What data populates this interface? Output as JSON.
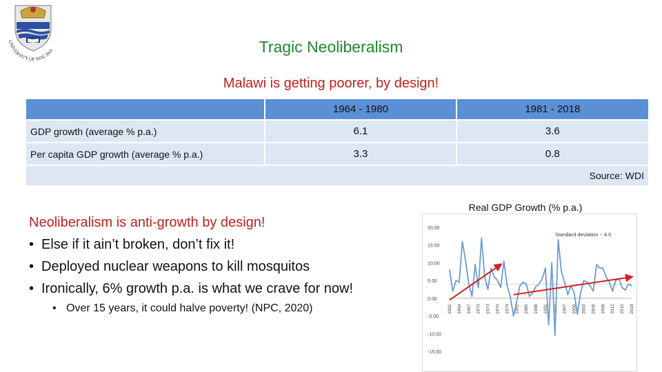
{
  "header": {
    "title": "Tragic Neoliberalism",
    "subtitle": "Malawi is getting poorer, by design!",
    "logo": {
      "name": "university-of-malawi-crest-icon",
      "text": "UNIVERSITY OF MALAWI"
    }
  },
  "table": {
    "columns": [
      "",
      "1964 - 1980",
      "1981 - 2018"
    ],
    "rows": [
      {
        "label": "GDP growth (average % p.a.)",
        "v1": "6.1",
        "v2": "3.6"
      },
      {
        "label": "Per capita GDP growth (average % p.a.)",
        "v1": "3.3",
        "v2": "0.8"
      }
    ],
    "source": "Source: WDI"
  },
  "bullets": {
    "heading": "Neoliberalism is anti-growth by design!",
    "items": [
      "Else if it ain’t broken, don’t fix it!",
      "Deployed nuclear weapons to kill mosquitos",
      "Ironically, 6% growth p.a. is what we crave for now!"
    ],
    "sub_items": [
      "Over 15 years, it could halve poverty! (NPC, 2020)"
    ],
    "bullet_char": "•"
  },
  "chart_data": {
    "type": "line",
    "title": "Real GDP Growth (% p.a.)",
    "annotation": "Standard deviation ~ 4.0",
    "ylim": [
      -15,
      20
    ],
    "yticks": [
      "20.00",
      "15.00",
      "10.00",
      "5.00",
      "0.00",
      "-5.00",
      "-10.00",
      "-15.00"
    ],
    "ytick_values": [
      20,
      15,
      10,
      5,
      0,
      -5,
      -10,
      -15
    ],
    "xticks": [
      "1961",
      "1964",
      "1967",
      "1970",
      "1973",
      "1976",
      "1979",
      "1982",
      "1985",
      "1988",
      "1991",
      "1994",
      "1997",
      "2000",
      "2003",
      "2006",
      "2009",
      "2012",
      "2015",
      "2018"
    ],
    "x": [
      1961,
      1962,
      1963,
      1964,
      1965,
      1966,
      1967,
      1968,
      1969,
      1970,
      1971,
      1972,
      1973,
      1974,
      1975,
      1976,
      1977,
      1978,
      1979,
      1980,
      1981,
      1982,
      1983,
      1984,
      1985,
      1986,
      1987,
      1988,
      1989,
      1990,
      1991,
      1992,
      1993,
      1994,
      1995,
      1996,
      1997,
      1998,
      1999,
      2000,
      2001,
      2002,
      2003,
      2004,
      2005,
      2006,
      2007,
      2008,
      2009,
      2010,
      2011,
      2012,
      2013,
      2014,
      2015,
      2016,
      2017,
      2018
    ],
    "series": [
      {
        "values": [
          8.0,
          2.0,
          5.0,
          4.5,
          16.0,
          10.5,
          4.0,
          0.5,
          9.5,
          3.0,
          17.0,
          6.0,
          2.5,
          8.5,
          6.0,
          5.0,
          3.0,
          10.5,
          3.5,
          0.5,
          -5.0,
          -1.0,
          3.5,
          4.5,
          4.0,
          0.5,
          1.5,
          3.3,
          4.0,
          5.5,
          8.5,
          -7.5,
          10.0,
          -10.5,
          16.5,
          7.5,
          4.5,
          1.0,
          3.5,
          1.5,
          -4.5,
          1.5,
          5.0,
          4.5,
          3.5,
          2.0,
          9.5,
          8.5,
          8.5,
          6.0,
          4.5,
          2.0,
          5.0,
          5.5,
          3.0,
          2.3,
          4.0,
          3.5
        ],
        "color": "#6b9bd2"
      }
    ],
    "trend_lines": [
      {
        "x": [
          1961,
          1977
        ],
        "values": [
          -0.5,
          9.5
        ],
        "color": "#d32020"
      },
      {
        "x": [
          1981,
          2018
        ],
        "values": [
          1.0,
          6.0
        ],
        "color": "#d32020"
      }
    ],
    "reference_line": {
      "value": 4.0,
      "color": "#888888"
    },
    "grid": false
  }
}
